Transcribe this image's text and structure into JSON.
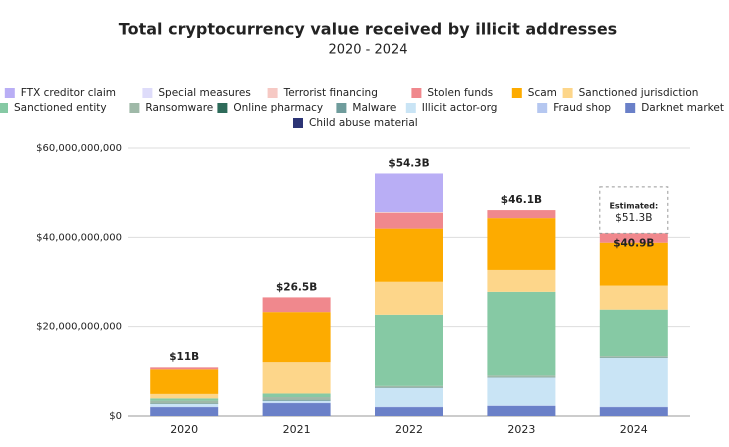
{
  "chart_data": {
    "type": "stacked_bar",
    "title": "Total cryptocurrency value received by illicit addresses",
    "subtitle": "2020 - 2024",
    "categories": [
      "2020",
      "2021",
      "2022",
      "2023",
      "2024"
    ],
    "ylim": [
      0,
      60000000000
    ],
    "yticks": [
      {
        "value": 0,
        "label": "$0"
      },
      {
        "value": 20000000000,
        "label": "$20,000,000,000"
      },
      {
        "value": 40000000000,
        "label": "$40,000,000,000"
      },
      {
        "value": 60000000000,
        "label": "$60,000,000,000"
      }
    ],
    "grid": true,
    "legend": "top",
    "series": [
      {
        "name": "FTX creditor claim",
        "color": "#b9aef5",
        "values": [
          0,
          0,
          8650000000,
          0,
          0
        ]
      },
      {
        "name": "Special measures",
        "color": "#dedcfa",
        "values": [
          0,
          0,
          0,
          0,
          0
        ]
      },
      {
        "name": "Terrorist financing",
        "color": "#f6c9c4",
        "values": [
          100000000,
          0,
          200000000,
          0,
          0
        ]
      },
      {
        "name": "Stolen funds",
        "color": "#f0888d",
        "values": [
          400000000,
          3300000000,
          3500000000,
          1800000000,
          2100000000
        ]
      },
      {
        "name": "Scam",
        "color": "#fdab00",
        "values": [
          5500000000,
          11200000000,
          11900000000,
          11600000000,
          9600000000
        ]
      },
      {
        "name": "Sanctioned jurisdiction",
        "color": "#fdd68a",
        "values": [
          1000000000,
          7000000000,
          7400000000,
          4900000000,
          5400000000
        ]
      },
      {
        "name": "Sanctioned entity",
        "color": "#86c9a4",
        "values": [
          500000000,
          800000000,
          15900000000,
          18700000000,
          10400000000
        ]
      },
      {
        "name": "Ransomware",
        "color": "#9fb9a8",
        "values": [
          600000000,
          600000000,
          300000000,
          400000000,
          300000000
        ]
      },
      {
        "name": "Online pharmacy",
        "color": "#2e6b5a",
        "values": [
          50000000,
          50000000,
          50000000,
          0,
          0
        ]
      },
      {
        "name": "Malware",
        "color": "#6f9c9c",
        "values": [
          100000000,
          200000000,
          100000000,
          100000000,
          100000000
        ]
      },
      {
        "name": "Illicit actor-org",
        "color": "#c9e4f5",
        "values": [
          600000000,
          400000000,
          4200000000,
          6200000000,
          10900000000
        ]
      },
      {
        "name": "Fraud shop",
        "color": "#b5c7f0",
        "values": [
          100000000,
          100000000,
          100000000,
          100000000,
          100000000
        ]
      },
      {
        "name": "Darknet market",
        "color": "#6a80c8",
        "values": [
          2000000000,
          2900000000,
          2000000000,
          2300000000,
          2000000000
        ]
      },
      {
        "name": "Child abuse material",
        "color": "#2c3475",
        "values": [
          0,
          0,
          0,
          0,
          0
        ]
      }
    ],
    "annotations": [
      {
        "value": 11000000000,
        "label": "$11B"
      },
      {
        "value": 26500000000,
        "label": "$26.5B"
      },
      {
        "value": 54300000000,
        "label": "$54.3B"
      },
      {
        "value": 46100000000,
        "label": "$46.1B"
      },
      {
        "value": 40900000000,
        "label": "$40.9B"
      }
    ],
    "estimate": {
      "value": 51300000000,
      "title": "Estimated:",
      "label": "$51.3B"
    }
  }
}
